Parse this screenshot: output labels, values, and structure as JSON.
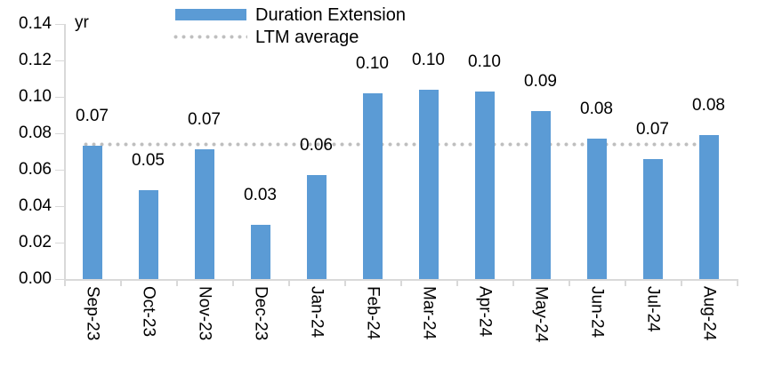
{
  "chart_data": {
    "type": "bar",
    "unit_label": "yr",
    "categories": [
      "Sep-23",
      "Oct-23",
      "Nov-23",
      "Dec-23",
      "Jan-24",
      "Feb-24",
      "Mar-24",
      "Apr-24",
      "May-24",
      "Jun-24",
      "Jul-24",
      "Aug-24"
    ],
    "series": [
      {
        "name": "Duration Extension",
        "type": "bar",
        "color": "#5B9BD5",
        "values": [
          0.073,
          0.049,
          0.071,
          0.03,
          0.057,
          0.102,
          0.104,
          0.103,
          0.092,
          0.077,
          0.066,
          0.079
        ],
        "data_labels": [
          "0.07",
          "0.05",
          "0.07",
          "0.03",
          "0.06",
          "0.10",
          "0.10",
          "0.10",
          "0.09",
          "0.08",
          "0.07",
          "0.08"
        ]
      },
      {
        "name": "LTM average",
        "type": "line",
        "line_style": "dotted",
        "color": "#BFBFBF",
        "value": 0.074
      }
    ],
    "y_axis": {
      "min": 0,
      "max": 0.14,
      "step": 0.02,
      "tick_labels": [
        "0.00",
        "0.02",
        "0.04",
        "0.06",
        "0.08",
        "0.10",
        "0.12",
        "0.14"
      ]
    },
    "axis_color": "#D9D9D9",
    "text_color": "#000000",
    "grid": false,
    "legend_position": "top"
  }
}
